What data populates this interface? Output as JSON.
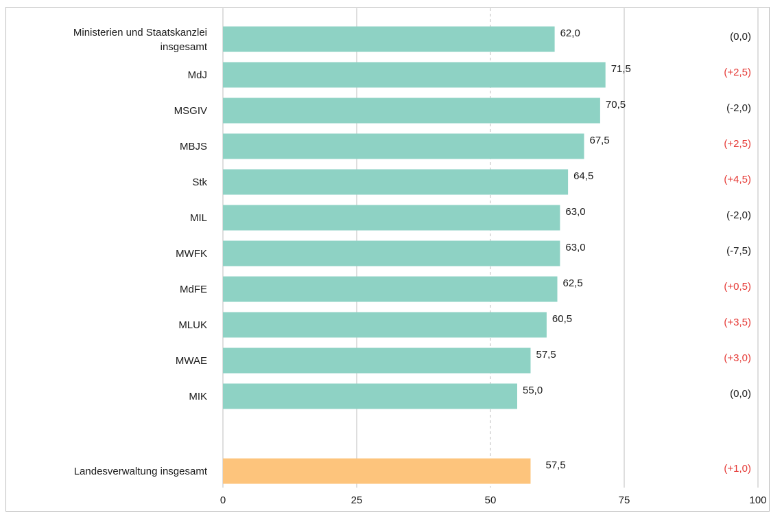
{
  "chart_data": {
    "type": "bar",
    "orientation": "horizontal",
    "categories": [
      [
        "Ministerien und Staatskanzlei",
        "insgesamt"
      ],
      [
        "MdJ"
      ],
      [
        "MSGIV"
      ],
      [
        "MBJS"
      ],
      [
        "Stk"
      ],
      [
        "MIL"
      ],
      [
        "MWFK"
      ],
      [
        "MdFE"
      ],
      [
        "MLUK"
      ],
      [
        "MWAE"
      ],
      [
        "MIK"
      ],
      [
        "Landesverwaltung insgesamt"
      ]
    ],
    "values": [
      62.0,
      71.5,
      70.5,
      67.5,
      64.5,
      63.0,
      63.0,
      62.5,
      60.5,
      57.5,
      55.0,
      57.5
    ],
    "value_labels": [
      "62,0",
      "71,5",
      "70,5",
      "67,5",
      "64,5",
      "63,0",
      "63,0",
      "62,5",
      "60,5",
      "57,5",
      "55,0",
      "57,5"
    ],
    "changes": [
      "(0,0)",
      "(+2,5)",
      "(-2,0)",
      "(+2,5)",
      "(+4,5)",
      "(-2,0)",
      "(-7,5)",
      "(+0,5)",
      "(+3,5)",
      "(+3,0)",
      "(0,0)",
      "(+1,0)"
    ],
    "highlighted": [
      false,
      false,
      false,
      false,
      false,
      false,
      false,
      false,
      false,
      false,
      false,
      true
    ],
    "xlim": [
      0,
      100
    ],
    "xticks": [
      "0",
      "25",
      "50",
      "75",
      "100"
    ],
    "colors": {
      "bar": "#8ed2c4",
      "highlight_bar": "#fdc47c",
      "positive_change": "#e53935",
      "neutral_change": "#1a1a1a",
      "grid": "#bdbdbd"
    },
    "grid": true
  }
}
